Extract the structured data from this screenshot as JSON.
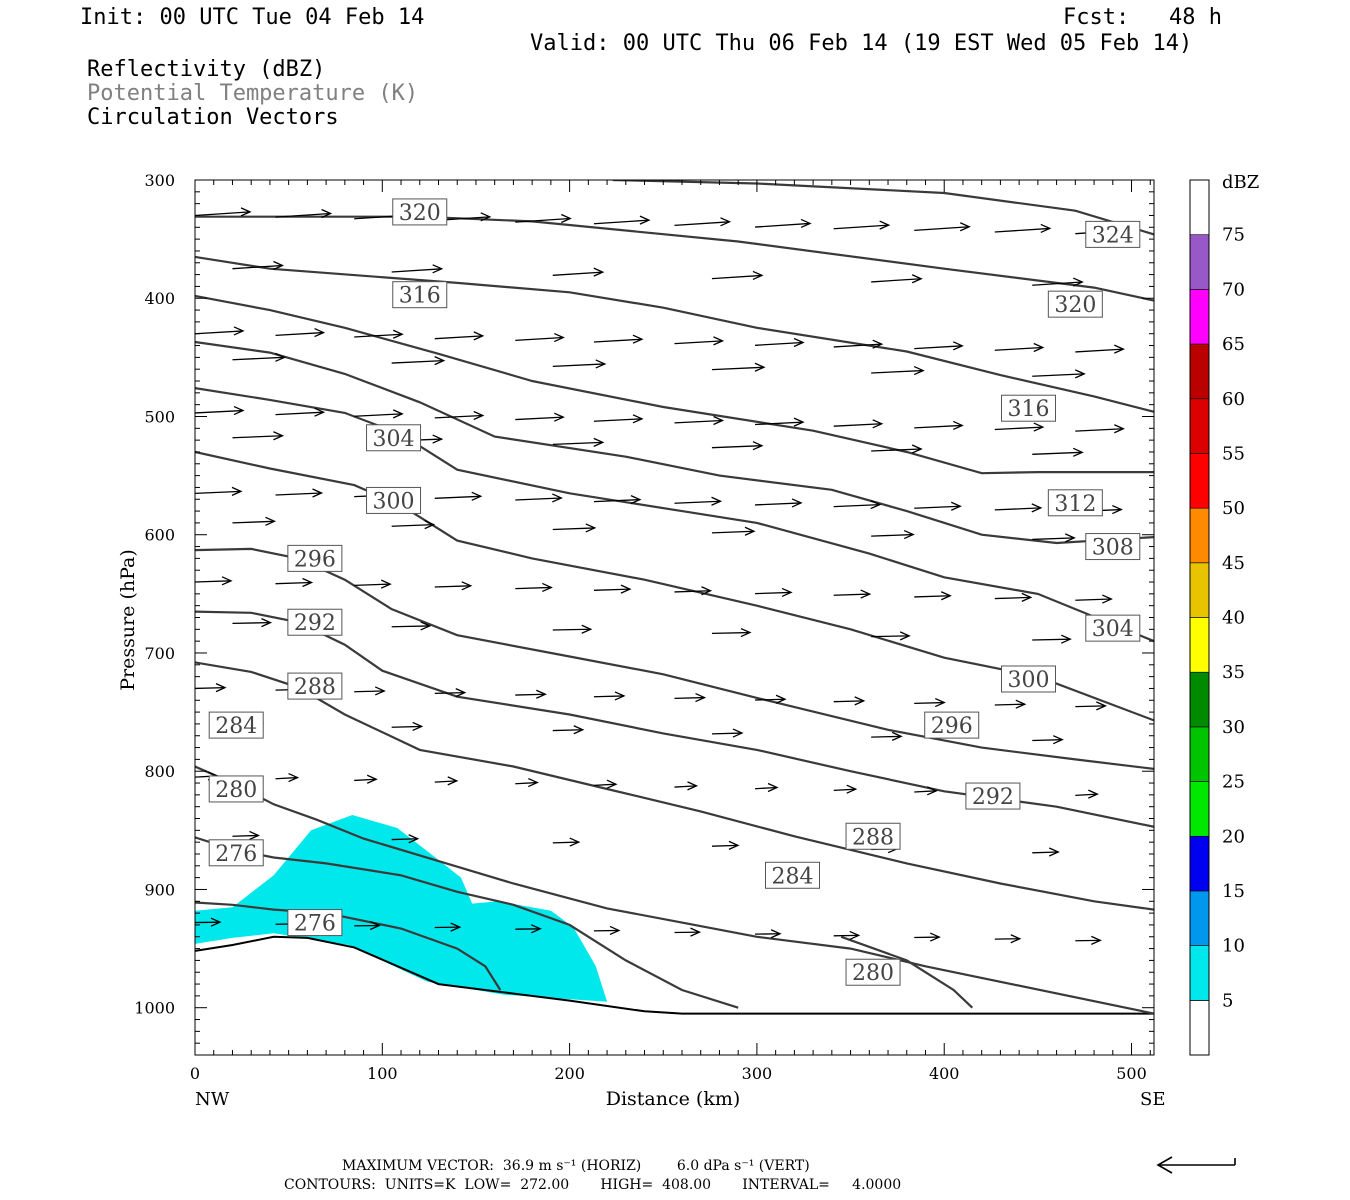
{
  "header": {
    "init": "Init: 00 UTC Tue 04 Feb 14",
    "fcst": "Fcst:   48 h",
    "valid": "Valid: 00 UTC Thu 06 Feb 14 (19 EST Wed 05 Feb 14)",
    "fields": [
      "Reflectivity (dBZ)",
      "Potential Temperature (K)",
      "Circulation Vectors"
    ],
    "field_colors": [
      "#000000",
      "#808080",
      "#000000"
    ]
  },
  "footer": {
    "vector_line": "MAXIMUM VECTOR:  36.9 m s⁻¹ (HORIZ)        6.0 dPa s⁻¹ (VERT)",
    "contour_line": "CONTOURS:  UNITS=K  LOW=  272.00       HIGH=  408.00       INTERVAL=     4.0000"
  },
  "chart_data": {
    "type": "cross-section",
    "xlabel": "Distance (km)",
    "ylabel": "Pressure (hPa)",
    "x_end_labels": [
      "NW",
      "SE"
    ],
    "xlim": [
      0,
      512
    ],
    "ylim": [
      300,
      1040
    ],
    "xticks": [
      0,
      100,
      200,
      300,
      400,
      500
    ],
    "yticks": [
      300,
      400,
      500,
      600,
      700,
      800,
      900,
      1000
    ],
    "colorbar": {
      "title": "dBZ",
      "levels": [
        5,
        10,
        15,
        20,
        25,
        30,
        35,
        40,
        45,
        50,
        55,
        60,
        65,
        70,
        75
      ],
      "colors": [
        "#00e8ec",
        "#0098ee",
        "#0000f0",
        "#00e800",
        "#00c400",
        "#008a00",
        "#ffff00",
        "#e8c400",
        "#ff8a00",
        "#ff0000",
        "#dd0000",
        "#bb0000",
        "#ff00ff",
        "#9858c8",
        "#ffffff"
      ]
    },
    "reflectivity": {
      "level": 5,
      "color": "#00e8ec",
      "polygon": [
        [
          0,
          918
        ],
        [
          20,
          915
        ],
        [
          42,
          888
        ],
        [
          62,
          850
        ],
        [
          84,
          837
        ],
        [
          108,
          848
        ],
        [
          130,
          875
        ],
        [
          142,
          890
        ],
        [
          148,
          912
        ],
        [
          162,
          910
        ],
        [
          190,
          918
        ],
        [
          202,
          932
        ],
        [
          214,
          965
        ],
        [
          220,
          995
        ],
        [
          165,
          989
        ],
        [
          124,
          978
        ],
        [
          82,
          947
        ],
        [
          42,
          937
        ],
        [
          20,
          941
        ],
        [
          0,
          946
        ]
      ]
    },
    "terrain": [
      [
        0,
        952
      ],
      [
        20,
        947
      ],
      [
        42,
        940
      ],
      [
        60,
        941
      ],
      [
        85,
        949
      ],
      [
        130,
        980
      ],
      [
        200,
        994
      ],
      [
        240,
        1003
      ],
      [
        260,
        1005
      ],
      [
        512,
        1005
      ]
    ],
    "theta_contours": [
      {
        "value": 324,
        "points": [
          [
            223,
            300
          ],
          [
            300,
            303
          ],
          [
            400,
            311
          ],
          [
            470,
            326
          ],
          [
            512,
            346
          ]
        ],
        "labels": [
          [
            490,
            346
          ]
        ]
      },
      {
        "value": 320,
        "points": [
          [
            0,
            331
          ],
          [
            120,
            331
          ],
          [
            180,
            335
          ],
          [
            290,
            352
          ],
          [
            400,
            375
          ],
          [
            480,
            391
          ],
          [
            512,
            402
          ]
        ],
        "labels": [
          [
            120,
            327
          ],
          [
            470,
            405
          ]
        ]
      },
      {
        "value": 316,
        "points": [
          [
            0,
            365
          ],
          [
            40,
            375
          ],
          [
            140,
            387
          ],
          [
            200,
            395
          ],
          [
            250,
            408
          ],
          [
            300,
            425
          ],
          [
            380,
            445
          ],
          [
            430,
            465
          ],
          [
            480,
            483
          ],
          [
            512,
            496
          ]
        ],
        "labels": [
          [
            120,
            397
          ],
          [
            445,
            493
          ]
        ]
      },
      {
        "value": 312,
        "points": [
          [
            0,
            398
          ],
          [
            40,
            410
          ],
          [
            80,
            425
          ],
          [
            130,
            447
          ],
          [
            180,
            470
          ],
          [
            250,
            492
          ],
          [
            330,
            512
          ],
          [
            380,
            530
          ],
          [
            420,
            548
          ],
          [
            450,
            547
          ],
          [
            512,
            547
          ]
        ],
        "labels": [
          [
            470,
            573
          ]
        ]
      },
      {
        "value": 308,
        "points": [
          [
            0,
            437
          ],
          [
            40,
            446
          ],
          [
            80,
            464
          ],
          [
            120,
            488
          ],
          [
            160,
            517
          ],
          [
            230,
            534
          ],
          [
            280,
            550
          ],
          [
            340,
            562
          ],
          [
            380,
            580
          ],
          [
            420,
            600
          ],
          [
            460,
            607
          ],
          [
            512,
            602
          ]
        ],
        "labels": [
          [
            490,
            610
          ]
        ]
      },
      {
        "value": 304,
        "points": [
          [
            0,
            476
          ],
          [
            40,
            486
          ],
          [
            80,
            497
          ],
          [
            110,
            515
          ],
          [
            140,
            545
          ],
          [
            200,
            565
          ],
          [
            260,
            580
          ],
          [
            300,
            590
          ],
          [
            360,
            616
          ],
          [
            400,
            636
          ],
          [
            450,
            650
          ],
          [
            512,
            690
          ]
        ],
        "labels": [
          [
            106,
            518
          ],
          [
            490,
            679
          ]
        ]
      },
      {
        "value": 300,
        "points": [
          [
            0,
            530
          ],
          [
            40,
            544
          ],
          [
            85,
            558
          ],
          [
            110,
            575
          ],
          [
            140,
            605
          ],
          [
            180,
            620
          ],
          [
            240,
            638
          ],
          [
            300,
            660
          ],
          [
            350,
            680
          ],
          [
            400,
            704
          ],
          [
            450,
            720
          ],
          [
            512,
            757
          ]
        ],
        "labels": [
          [
            106,
            571
          ],
          [
            445,
            722
          ]
        ]
      },
      {
        "value": 296,
        "points": [
          [
            0,
            613
          ],
          [
            30,
            612
          ],
          [
            55,
            620
          ],
          [
            80,
            638
          ],
          [
            105,
            663
          ],
          [
            140,
            685
          ],
          [
            200,
            703
          ],
          [
            250,
            718
          ],
          [
            300,
            738
          ],
          [
            370,
            765
          ],
          [
            420,
            780
          ],
          [
            470,
            790
          ],
          [
            512,
            798
          ]
        ],
        "labels": [
          [
            64,
            620
          ],
          [
            404,
            761
          ]
        ]
      },
      {
        "value": 292,
        "points": [
          [
            0,
            665
          ],
          [
            30,
            666
          ],
          [
            55,
            674
          ],
          [
            80,
            693
          ],
          [
            100,
            715
          ],
          [
            140,
            737
          ],
          [
            200,
            752
          ],
          [
            250,
            768
          ],
          [
            300,
            782
          ],
          [
            350,
            800
          ],
          [
            400,
            817
          ],
          [
            460,
            830
          ],
          [
            512,
            847
          ]
        ],
        "labels": [
          [
            64,
            674
          ],
          [
            426,
            821
          ]
        ]
      },
      {
        "value": 288,
        "points": [
          [
            0,
            708
          ],
          [
            30,
            716
          ],
          [
            55,
            729
          ],
          [
            80,
            752
          ],
          [
            120,
            782
          ],
          [
            170,
            796
          ],
          [
            220,
            815
          ],
          [
            270,
            834
          ],
          [
            320,
            855
          ],
          [
            380,
            878
          ],
          [
            430,
            895
          ],
          [
            480,
            910
          ],
          [
            512,
            917
          ]
        ],
        "labels": [
          [
            64,
            728
          ],
          [
            362,
            855
          ]
        ]
      },
      {
        "value": 284,
        "points": [
          [
            0,
            796
          ],
          [
            20,
            810
          ],
          [
            42,
            828
          ],
          [
            65,
            841
          ],
          [
            90,
            857
          ],
          [
            130,
            876
          ],
          [
            170,
            895
          ],
          [
            220,
            916
          ],
          [
            260,
            928
          ],
          [
            300,
            940
          ],
          [
            350,
            950
          ],
          [
            390,
            965
          ],
          [
            512,
            1005
          ]
        ],
        "labels": [
          [
            22,
            761
          ],
          [
            319,
            888
          ]
        ]
      },
      {
        "value": 280,
        "points": [
          [
            0,
            856
          ],
          [
            20,
            866
          ],
          [
            42,
            873
          ],
          [
            70,
            878
          ],
          [
            110,
            888
          ],
          [
            140,
            902
          ],
          [
            170,
            913
          ],
          [
            200,
            930
          ],
          [
            230,
            960
          ],
          [
            260,
            985
          ],
          [
            290,
            1000
          ]
        ],
        "labels": [
          [
            22,
            815
          ],
          [
            362,
            970
          ]
        ]
      },
      {
        "value": 276,
        "points": [
          [
            0,
            911
          ],
          [
            20,
            913
          ],
          [
            42,
            917
          ],
          [
            70,
            920
          ],
          [
            110,
            933
          ],
          [
            140,
            950
          ],
          [
            155,
            965
          ],
          [
            163,
            985
          ]
        ],
        "labels": [
          [
            22,
            869
          ],
          [
            64,
            928
          ]
        ]
      },
      {
        "value": 272,
        "points": [
          [
            345,
            940
          ],
          [
            380,
            960
          ],
          [
            405,
            985
          ],
          [
            415,
            1000
          ]
        ],
        "labels": []
      }
    ]
  }
}
